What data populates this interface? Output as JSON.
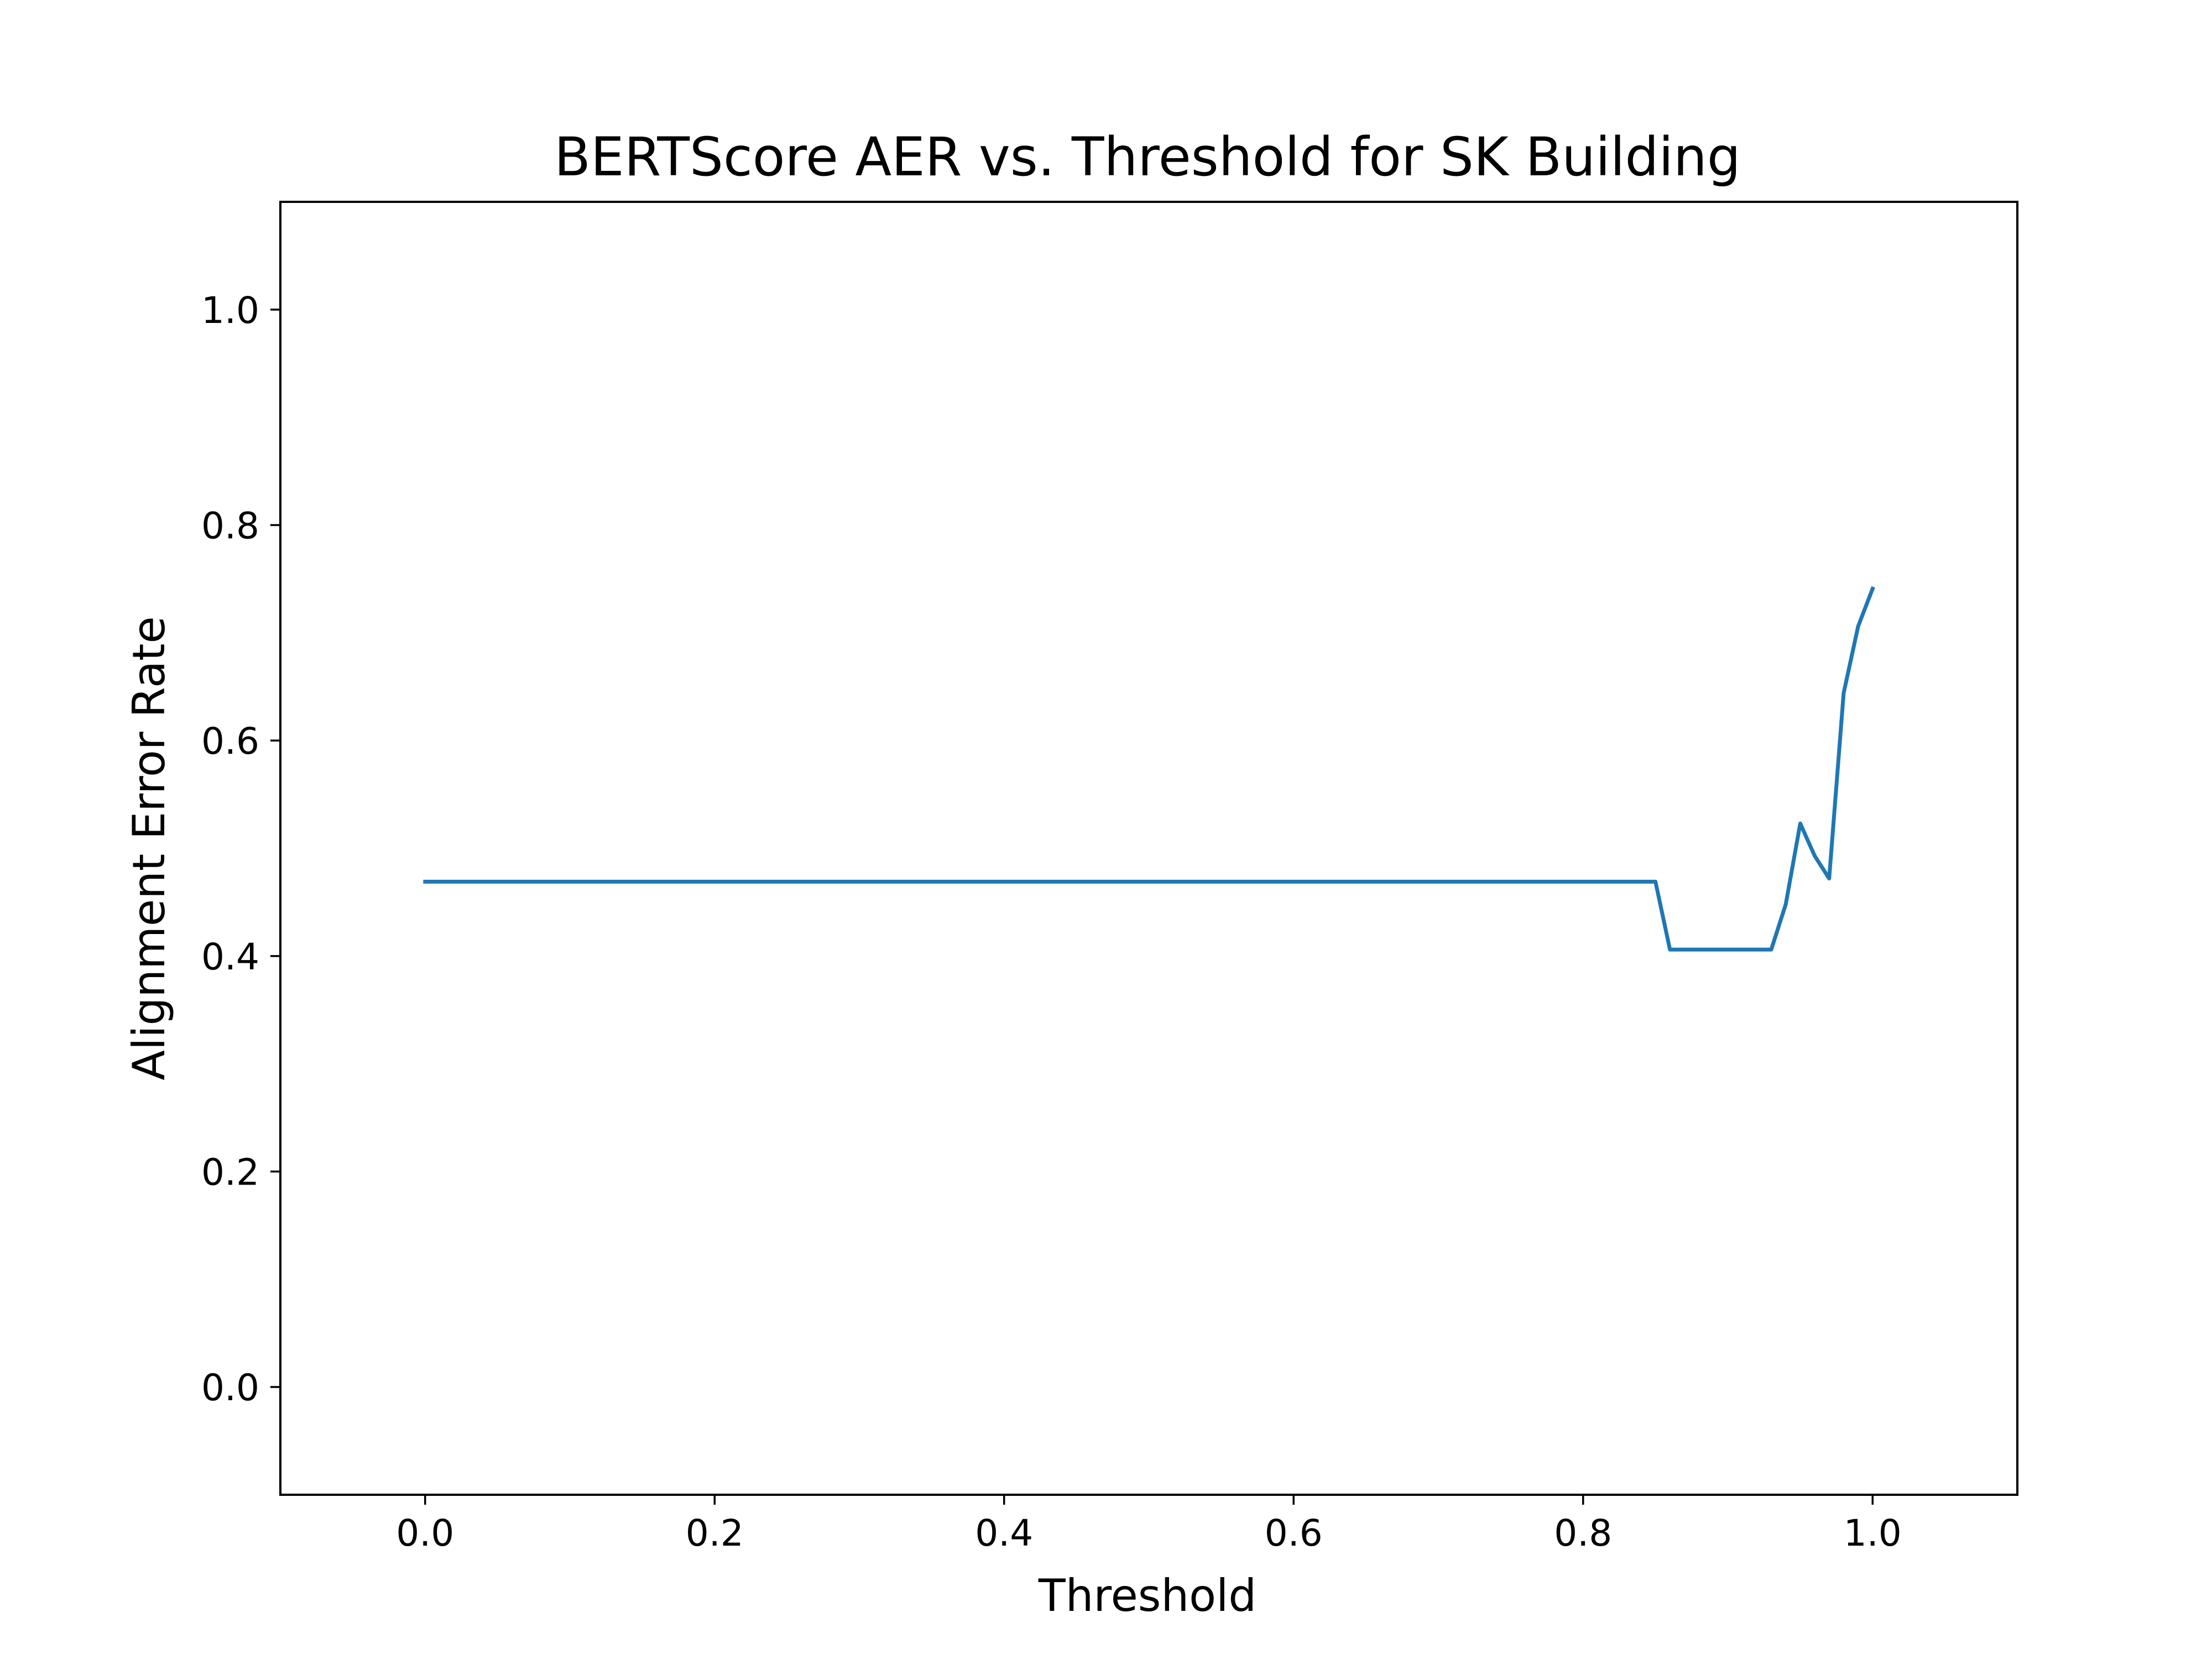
{
  "chart_data": {
    "type": "line",
    "title": "BERTScore AER vs. Threshold for SK Building",
    "xlabel": "Threshold",
    "ylabel": "Alignment Error Rate",
    "xlim": [
      -0.1,
      1.1
    ],
    "ylim": [
      -0.1,
      1.1
    ],
    "xticks": [
      0.0,
      0.2,
      0.4,
      0.6,
      0.8,
      1.0
    ],
    "xtick_labels": [
      "0.0",
      "0.2",
      "0.4",
      "0.6",
      "0.8",
      "1.0"
    ],
    "yticks": [
      0.0,
      0.2,
      0.4,
      0.6,
      0.8,
      1.0
    ],
    "ytick_labels": [
      "0.0",
      "0.2",
      "0.4",
      "0.6",
      "0.8",
      "1.0"
    ],
    "grid": false,
    "series": [
      {
        "color": "#1f77b4",
        "x": [
          0.0,
          0.85,
          0.86,
          0.87,
          0.88,
          0.89,
          0.9,
          0.91,
          0.92,
          0.93,
          0.94,
          0.95,
          0.96,
          0.97,
          0.98,
          0.99,
          1.0
        ],
        "y": [
          0.469,
          0.469,
          0.406,
          0.406,
          0.406,
          0.406,
          0.406,
          0.406,
          0.406,
          0.406,
          0.448,
          0.523,
          0.493,
          0.472,
          0.644,
          0.706,
          0.741
        ]
      }
    ]
  }
}
